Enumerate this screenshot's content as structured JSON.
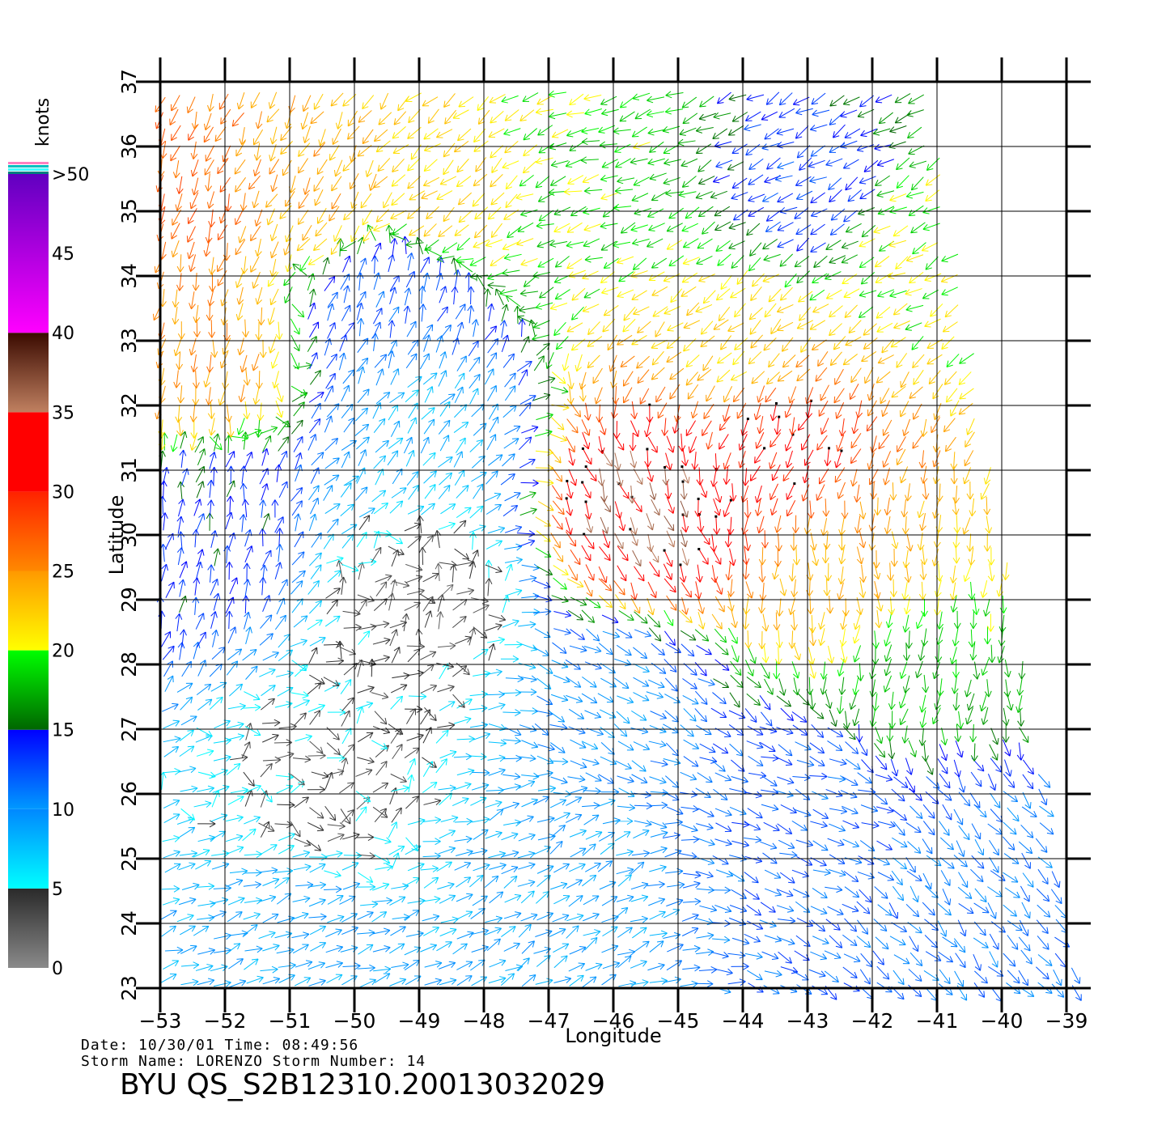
{
  "chart_data": {
    "type": "wind_vector_map",
    "xlabel": "Longitude",
    "ylabel": "Latitude",
    "xlim": [
      -53,
      -39
    ],
    "ylim": [
      23,
      37
    ],
    "x_ticks": [
      -53,
      -52,
      -51,
      -50,
      -49,
      -48,
      -47,
      -46,
      -45,
      -44,
      -43,
      -42,
      -41,
      -40,
      -39
    ],
    "y_ticks": [
      23,
      24,
      25,
      26,
      27,
      28,
      29,
      30,
      31,
      32,
      33,
      34,
      35,
      36,
      37
    ],
    "x_tick_labels": [
      "−53",
      "−52",
      "−51",
      "−50",
      "−49",
      "−48",
      "−47",
      "−46",
      "−45",
      "−44",
      "−43",
      "−42",
      "−41",
      "−40",
      "−39"
    ],
    "y_tick_labels": [
      "23",
      "24",
      "25",
      "26",
      "27",
      "28",
      "29",
      "30",
      "31",
      "32",
      "33",
      "34",
      "35",
      "36",
      "37"
    ],
    "grid": true,
    "legend": {
      "title": "knots",
      "placement": "left",
      "labels": [
        "0",
        "5",
        "10",
        "15",
        "20",
        "25",
        "30",
        "35",
        "40",
        "45",
        ">50"
      ],
      "bands": [
        {
          "min": 0,
          "max": 5,
          "colors": [
            "#8a8a8a",
            "#2a2a2a"
          ]
        },
        {
          "min": 5,
          "max": 10,
          "colors": [
            "#00ffff",
            "#0088ff"
          ]
        },
        {
          "min": 10,
          "max": 15,
          "colors": [
            "#0099ff",
            "#0000ff"
          ]
        },
        {
          "min": 15,
          "max": 20,
          "colors": [
            "#006600",
            "#00ff00"
          ]
        },
        {
          "min": 20,
          "max": 25,
          "colors": [
            "#ffff00",
            "#ff9900"
          ]
        },
        {
          "min": 25,
          "max": 30,
          "colors": [
            "#ff8800",
            "#ff2200"
          ]
        },
        {
          "min": 30,
          "max": 35,
          "colors": [
            "#ff0000",
            "#ff0000"
          ]
        },
        {
          "min": 35,
          "max": 40,
          "colors": [
            "#c08060",
            "#3a0a00"
          ]
        },
        {
          "min": 40,
          "max": 50,
          "colors": [
            "#ff00ff",
            "#6000c0"
          ]
        }
      ],
      "top_stripes": [
        "#ff80c0",
        "#00c0c0",
        "#40ffff",
        "#008080"
      ]
    },
    "wind_regions": [
      {
        "lon": -52.5,
        "lat": 35.5,
        "speed_kt": 27,
        "dir_deg": 200
      },
      {
        "lon": -50.5,
        "lat": 35.5,
        "speed_kt": 24,
        "dir_deg": 210
      },
      {
        "lon": -48.5,
        "lat": 35.5,
        "speed_kt": 22,
        "dir_deg": 230
      },
      {
        "lon": -46.0,
        "lat": 35.5,
        "speed_kt": 19,
        "dir_deg": 250
      },
      {
        "lon": -43.0,
        "lat": 35.5,
        "speed_kt": 13,
        "dir_deg": 240
      },
      {
        "lon": -41.0,
        "lat": 34.5,
        "speed_kt": 20,
        "dir_deg": 240
      },
      {
        "lon": -49.5,
        "lat": 33.5,
        "speed_kt": 12,
        "dir_deg": 20
      },
      {
        "lon": -49.0,
        "lat": 31.5,
        "speed_kt": 8,
        "dir_deg": 40
      },
      {
        "lon": -49.0,
        "lat": 29.0,
        "speed_kt": 3,
        "dir_deg": 60
      },
      {
        "lon": -50.5,
        "lat": 26.0,
        "speed_kt": 4,
        "dir_deg": 80
      },
      {
        "lon": -52.5,
        "lat": 30.0,
        "speed_kt": 14,
        "dir_deg": 10
      },
      {
        "lon": -52.5,
        "lat": 33.0,
        "speed_kt": 25,
        "dir_deg": 190
      },
      {
        "lon": -45.5,
        "lat": 30.5,
        "speed_kt": 36,
        "dir_deg": 160
      },
      {
        "lon": -43.5,
        "lat": 31.5,
        "speed_kt": 31,
        "dir_deg": 200
      },
      {
        "lon": -44.0,
        "lat": 33.0,
        "speed_kt": 22,
        "dir_deg": 230
      },
      {
        "lon": -42.5,
        "lat": 29.5,
        "speed_kt": 24,
        "dir_deg": 180
      },
      {
        "lon": -41.5,
        "lat": 28.0,
        "speed_kt": 18,
        "dir_deg": 190
      },
      {
        "lon": -43.0,
        "lat": 26.0,
        "speed_kt": 12,
        "dir_deg": 110
      },
      {
        "lon": -40.5,
        "lat": 25.0,
        "speed_kt": 11,
        "dir_deg": 140
      },
      {
        "lon": -46.0,
        "lat": 27.5,
        "speed_kt": 10,
        "dir_deg": 120
      },
      {
        "lon": -47.0,
        "lat": 24.5,
        "speed_kt": 9,
        "dir_deg": 60
      },
      {
        "lon": -51.0,
        "lat": 23.8,
        "speed_kt": 9,
        "dir_deg": 70
      }
    ]
  },
  "info": {
    "date_line": "Date: 10/30/01   Time: 08:49:56",
    "storm_line": "Storm Name: LORENZO   Storm Number: 14",
    "id_line": "BYU QS_S2B12310.20013032029"
  },
  "colors": {
    "grid": "#000000",
    "background": "#ffffff"
  }
}
